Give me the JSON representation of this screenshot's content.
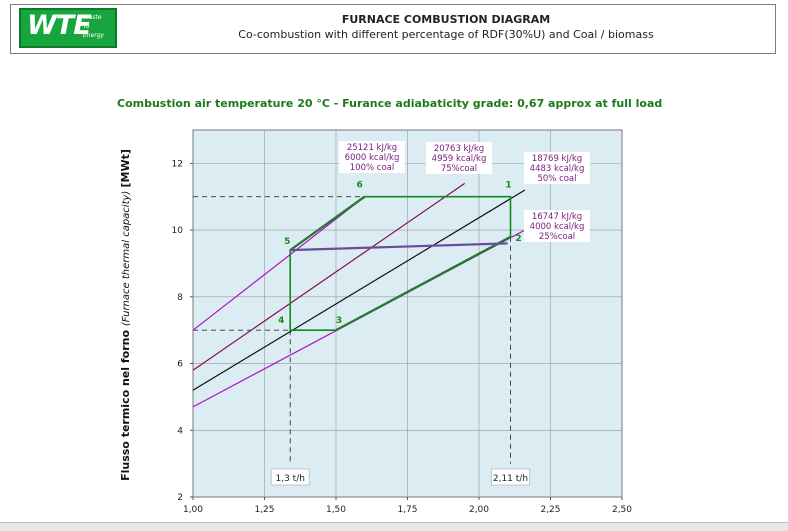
{
  "header": {
    "logo_text": "WTE",
    "logo_tagline": [
      "Waste",
      "To",
      "Energy"
    ],
    "title": "FURNACE COMBUSTION DIAGRAM",
    "subtitle": "Co-combustion with different percentage of RDF(30%U) and Coal  / biomass"
  },
  "condition_text": "Combustion air temperature 20 °C  - Furance adiabaticity grade: 0,67 approx at full load",
  "colors": {
    "plot_bg": "#dbecf2",
    "grid": "#9a9a9a",
    "coal_line": "#b10fc9",
    "mix_line": "#8a0a5a",
    "outline": "#444444",
    "operating_box": "#138a1c",
    "low_limit": "#6a4a9a",
    "label_text": "#7a1a7a",
    "point_text": "#1a8a1a"
  },
  "chart_data": {
    "type": "line",
    "title": "",
    "xlabel": "",
    "ylabel": "Flusso termico nel forno",
    "ylabel_italic": "(Furnace thermal capacity)",
    "ylabel_unit": "[MWt]",
    "xlim": [
      1.0,
      2.5
    ],
    "ylim": [
      2,
      13
    ],
    "xticks": [
      1.0,
      1.25,
      1.5,
      1.75,
      2.0,
      2.25,
      2.5
    ],
    "xtick_labels": [
      "1,00",
      "1,25",
      "1,50",
      "1,75",
      "2,00",
      "2,25",
      "2,50"
    ],
    "yticks": [
      2,
      4,
      6,
      8,
      10,
      12
    ],
    "ytick_labels": [
      "2",
      "4",
      "6",
      "8",
      "10",
      "12"
    ],
    "grid": true,
    "series": [
      {
        "name": "25121 kJ/kg 6000 kcal/kg 100% coal",
        "role": "coal",
        "x": [
          1.0,
          1.6
        ],
        "y": [
          7.0,
          11.0
        ]
      },
      {
        "name": "20763 kJ/kg 4959 kcal/kg 75%coal",
        "role": "mix",
        "x": [
          1.0,
          1.95
        ],
        "y": [
          5.8,
          11.4
        ]
      },
      {
        "name": "18769 kJ/kg 4483 kcal/kg 50% coal",
        "role": "mix",
        "x": [
          1.0,
          2.16
        ],
        "y": [
          5.2,
          11.2
        ]
      },
      {
        "name": "16747 kJ/kg 4000 kcal/kg 25%coal",
        "role": "coal",
        "x": [
          1.0,
          2.16
        ],
        "y": [
          4.7,
          10.0
        ]
      }
    ],
    "envelope": [
      {
        "x": [
          1.34,
          1.6
        ],
        "y": [
          9.4,
          11.0
        ]
      },
      {
        "x": [
          1.5,
          2.11
        ],
        "y": [
          7.0,
          9.8
        ]
      }
    ],
    "low_limit_line": {
      "x": [
        1.34,
        2.1
      ],
      "y": [
        9.4,
        9.6
      ]
    },
    "operating_polygon": {
      "x": [
        1.6,
        2.11,
        2.11,
        1.5,
        1.34,
        1.34,
        1.6
      ],
      "y": [
        11.0,
        11.0,
        9.8,
        7.0,
        7.0,
        9.4,
        11.0
      ]
    },
    "points": [
      {
        "label": "1",
        "x": 2.11,
        "y": 11.0
      },
      {
        "label": "2",
        "x": 2.11,
        "y": 9.8
      },
      {
        "label": "3",
        "x": 1.5,
        "y": 7.0
      },
      {
        "label": "4",
        "x": 1.34,
        "y": 7.0
      },
      {
        "label": "5",
        "x": 1.34,
        "y": 9.4
      },
      {
        "label": "6",
        "x": 1.6,
        "y": 11.0
      }
    ],
    "reference_lines": [
      {
        "x": [
          1.0,
          2.11
        ],
        "y": [
          11.0,
          11.0
        ]
      },
      {
        "x": [
          1.0,
          1.34
        ],
        "y": [
          7.0,
          7.0
        ]
      },
      {
        "x": [
          1.34,
          1.34
        ],
        "y": [
          7.0,
          3.0
        ]
      },
      {
        "x": [
          2.11,
          2.11
        ],
        "y": [
          9.8,
          3.0
        ]
      }
    ],
    "annotations": [
      {
        "text": "1,3 t/h",
        "x": 1.34
      },
      {
        "text": "2,11 t/h",
        "x": 2.11
      }
    ],
    "line_labels": [
      {
        "lines": [
          "25121 kJ/kg",
          "6000 kcal/kg",
          "100% coal"
        ]
      },
      {
        "lines": [
          "20763 kJ/kg",
          "4959 kcal/kg",
          "75%coal"
        ]
      },
      {
        "lines": [
          "18769 kJ/kg",
          "4483 kcal/kg",
          "50% coal"
        ]
      },
      {
        "lines": [
          "16747 kJ/kg",
          "4000 kcal/kg",
          "25%coal"
        ]
      }
    ]
  }
}
